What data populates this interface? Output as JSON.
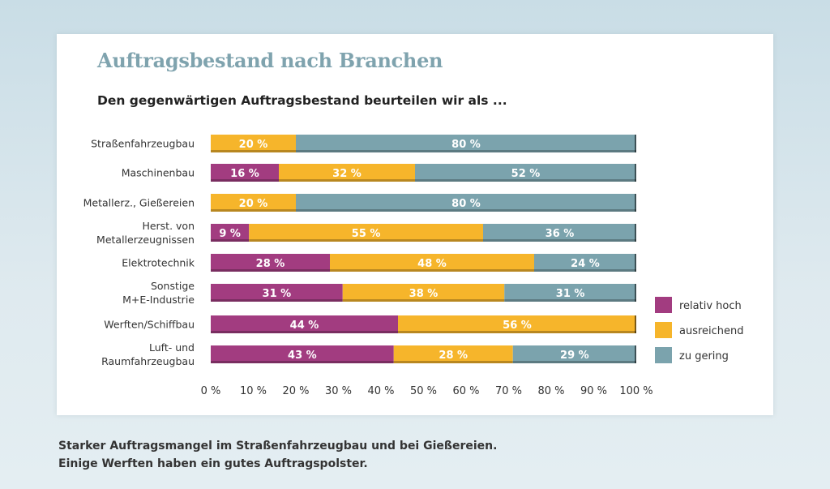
{
  "title": "Auftragsbestand nach Branchen",
  "subtitle": "Den gegenwärtigen Auftragsbestand beurteilen wir als ...",
  "caption": [
    "Starker Auftragsmangel im Straßenfahrzeugbau und bei Gießereien.",
    "Einige Werften haben ein gutes Auftragspolster."
  ],
  "chart_data": {
    "type": "bar",
    "orientation": "horizontal",
    "stacked": true,
    "categories": [
      [
        "Straßenfahrzeugbau"
      ],
      [
        "Maschinenbau"
      ],
      [
        "Metallerz., Gießereien"
      ],
      [
        "Herst. von",
        "Metallerzeugnissen"
      ],
      [
        "Elektrotechnik"
      ],
      [
        "Sonstige",
        "M+E-Industrie"
      ],
      [
        "Werften/Schiffbau"
      ],
      [
        "Luft- und",
        "Raumfahrzeugbau"
      ]
    ],
    "series": [
      {
        "name": "relativ hoch",
        "color": "#a23c80",
        "values": [
          0,
          16,
          0,
          9,
          28,
          31,
          44,
          43
        ]
      },
      {
        "name": "ausreichend",
        "color": "#f6b52b",
        "values": [
          20,
          32,
          20,
          55,
          48,
          38,
          56,
          28
        ]
      },
      {
        "name": "zu gering",
        "color": "#7ba3ad",
        "values": [
          80,
          52,
          80,
          36,
          24,
          31,
          0,
          29
        ]
      }
    ],
    "xlim": [
      0,
      100
    ],
    "xticks": [
      "0%",
      "10%",
      "20%",
      "30%",
      "40%",
      "50%",
      "60%",
      "70%",
      "80%",
      "90%",
      "100%"
    ],
    "legend_position": "right",
    "grid": false
  }
}
